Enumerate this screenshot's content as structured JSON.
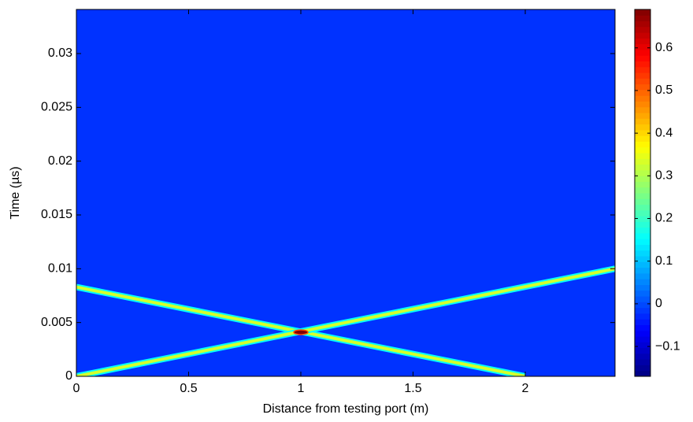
{
  "chart_data": {
    "type": "heatmap",
    "x_label": "Distance from testing port (m)",
    "y_label": "Time (µs)",
    "xlim": [
      0,
      2.4
    ],
    "xticks": [
      0,
      0.5,
      1,
      1.5,
      2
    ],
    "ylim": [
      0,
      0.0341
    ],
    "yticks": [
      0,
      0.005,
      0.01,
      0.015,
      0.02,
      0.025,
      0.03
    ],
    "colormap": "jet",
    "clim": [
      -0.17,
      0.69
    ],
    "cticks": [
      {
        "value": -0.1,
        "label": "−0.1"
      },
      0,
      0.1,
      0.2,
      0.3,
      0.4,
      0.5,
      0.6
    ],
    "background": -0.02,
    "fronts": [
      {
        "x": [
          0,
          2
        ],
        "y": [
          0.0083,
          0
        ],
        "value": 0.33
      },
      {
        "x": [
          0,
          2.4
        ],
        "y": [
          0,
          0.01
        ],
        "value": 0.33
      }
    ],
    "peak": {
      "x": 1,
      "y": 0.0041,
      "value": 0.69
    }
  }
}
